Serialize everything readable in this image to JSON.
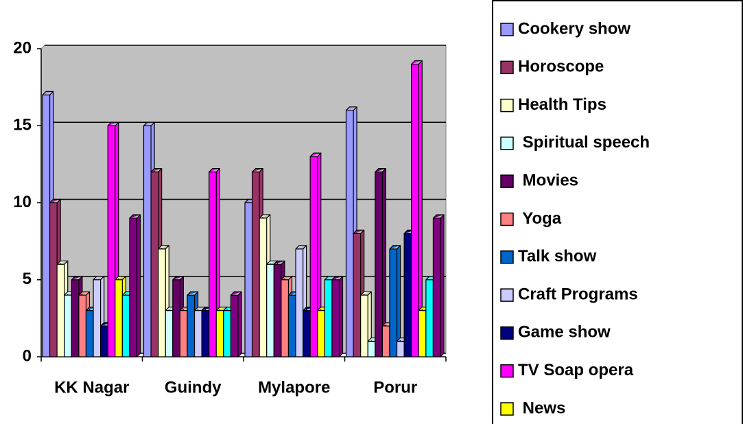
{
  "chart_data": {
    "type": "bar",
    "categories": [
      "KK Nagar",
      "Guindy",
      "Mylapore",
      "Porur"
    ],
    "ylim": [
      0,
      20
    ],
    "yticks": [
      0,
      5,
      10,
      15,
      20
    ],
    "grid": true,
    "series": [
      {
        "name": "Cookery show",
        "color": "#9999ff",
        "values": [
          17,
          15,
          10,
          16
        ]
      },
      {
        "name": "Horoscope",
        "color": "#993366",
        "values": [
          10,
          12,
          12,
          8
        ]
      },
      {
        "name": "Health Tips",
        "color": "#ffffcc",
        "values": [
          6,
          7,
          9,
          4
        ]
      },
      {
        "name": " Spiritual speech",
        "color": "#ccffff",
        "values": [
          4,
          3,
          6,
          1
        ]
      },
      {
        "name": " Movies",
        "color": "#660066",
        "values": [
          5,
          5,
          6,
          12
        ]
      },
      {
        "name": " Yoga",
        "color": "#ff8080",
        "values": [
          4,
          3,
          5,
          2
        ]
      },
      {
        "name": "Talk show",
        "color": "#0066cc",
        "values": [
          3,
          4,
          4,
          7
        ]
      },
      {
        "name": "Craft Programs",
        "color": "#ccccff",
        "values": [
          5,
          3,
          7,
          1
        ]
      },
      {
        "name": "Game show",
        "color": "#000080",
        "values": [
          2,
          3,
          3,
          8
        ]
      },
      {
        "name": "TV Soap opera",
        "color": "#ff00ff",
        "values": [
          15,
          12,
          13,
          19
        ]
      },
      {
        "name": " News",
        "color": "#ffff00",
        "values": [
          5,
          3,
          3,
          3
        ]
      },
      {
        "color": "#00ffff",
        "values": [
          4,
          3,
          5,
          5
        ]
      },
      {
        "color": "#800080",
        "values": [
          9,
          4,
          5,
          9
        ]
      }
    ]
  }
}
